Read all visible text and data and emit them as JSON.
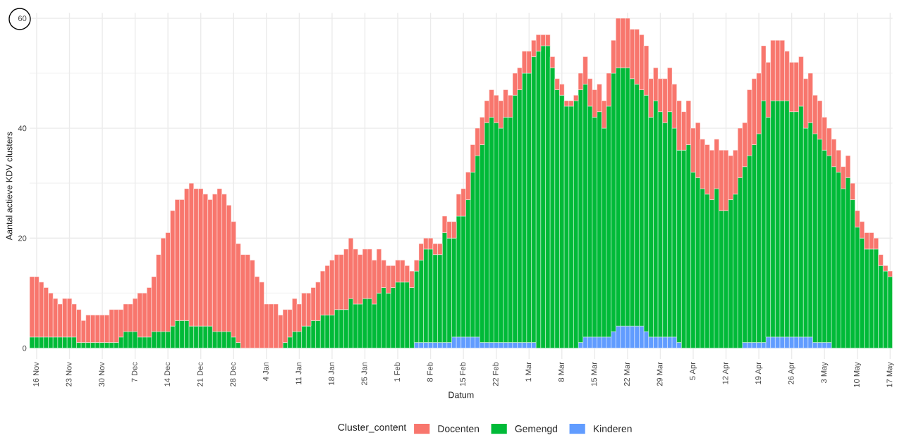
{
  "chart_data": {
    "type": "bar",
    "stacked": true,
    "xlabel": "Datum",
    "ylabel": "Aantal actieve KDV clusters",
    "legend_title": "Cluster_content",
    "categories": [
      null,
      "16 Nov",
      null,
      null,
      null,
      null,
      null,
      null,
      "23 Nov",
      null,
      null,
      null,
      null,
      null,
      null,
      "30 Nov",
      null,
      null,
      null,
      null,
      null,
      null,
      "7 Dec",
      null,
      null,
      null,
      null,
      null,
      null,
      "14 Dec",
      null,
      null,
      null,
      null,
      null,
      null,
      "21 Dec",
      null,
      null,
      null,
      null,
      null,
      null,
      "28 Dec",
      null,
      null,
      null,
      null,
      null,
      null,
      "4 Jan",
      null,
      null,
      null,
      null,
      null,
      null,
      "11 Jan",
      null,
      null,
      null,
      null,
      null,
      null,
      "18 Jan",
      null,
      null,
      null,
      null,
      null,
      null,
      "25 Jan",
      null,
      null,
      null,
      null,
      null,
      null,
      "1 Feb",
      null,
      null,
      null,
      null,
      null,
      null,
      "8 Feb",
      null,
      null,
      null,
      null,
      null,
      null,
      "15 Feb",
      null,
      null,
      null,
      null,
      null,
      null,
      "22 Feb",
      null,
      null,
      null,
      null,
      null,
      null,
      "1 Mar",
      null,
      null,
      null,
      null,
      null,
      null,
      "8 Mar",
      null,
      null,
      null,
      null,
      null,
      null,
      "15 Mar",
      null,
      null,
      null,
      null,
      null,
      null,
      "22 Mar",
      null,
      null,
      null,
      null,
      null,
      null,
      "29 Mar",
      null,
      null,
      null,
      null,
      null,
      null,
      "5 Apr",
      null,
      null,
      null,
      null,
      null,
      null,
      "12 Apr",
      null,
      null,
      null,
      null,
      null,
      null,
      "19 Apr",
      null,
      null,
      null,
      null,
      null,
      null,
      "26 Apr",
      null,
      null,
      null,
      null,
      null,
      null,
      "3 May",
      null,
      null,
      null,
      null,
      null,
      null,
      "10 May",
      null,
      null,
      null,
      null,
      null,
      null,
      "17 May"
    ],
    "series": [
      {
        "name": "Kinderen",
        "color": "#619cff",
        "values": [
          0,
          0,
          0,
          0,
          0,
          0,
          0,
          0,
          0,
          0,
          0,
          0,
          0,
          0,
          0,
          0,
          0,
          0,
          0,
          0,
          0,
          0,
          0,
          0,
          0,
          0,
          0,
          0,
          0,
          0,
          0,
          0,
          0,
          0,
          0,
          0,
          0,
          0,
          0,
          0,
          0,
          0,
          0,
          0,
          0,
          0,
          0,
          0,
          0,
          0,
          0,
          0,
          0,
          0,
          0,
          0,
          0,
          0,
          0,
          0,
          0,
          0,
          0,
          0,
          0,
          0,
          0,
          0,
          0,
          0,
          0,
          0,
          0,
          0,
          0,
          0,
          0,
          0,
          0,
          0,
          0,
          0,
          1,
          1,
          1,
          1,
          1,
          1,
          1,
          1,
          2,
          2,
          2,
          2,
          2,
          2,
          1,
          1,
          1,
          1,
          1,
          1,
          1,
          1,
          1,
          1,
          1,
          1,
          0,
          0,
          0,
          0,
          0,
          0,
          0,
          0,
          0,
          1,
          2,
          2,
          2,
          2,
          2,
          2,
          3,
          4,
          4,
          4,
          4,
          4,
          4,
          3,
          2,
          2,
          2,
          2,
          2,
          2,
          1,
          0,
          0,
          0,
          0,
          0,
          0,
          0,
          0,
          0,
          0,
          0,
          0,
          0,
          1,
          1,
          1,
          1,
          1,
          2,
          2,
          2,
          2,
          2,
          2,
          2,
          2,
          2,
          2,
          1,
          1,
          1,
          1,
          0,
          0,
          0,
          0,
          0,
          0,
          0,
          0,
          0,
          0,
          0,
          0,
          0
        ]
      },
      {
        "name": "Gemengd",
        "color": "#00ba38",
        "values": [
          2,
          2,
          2,
          2,
          2,
          2,
          2,
          2,
          2,
          2,
          1,
          1,
          1,
          1,
          1,
          1,
          1,
          1,
          1,
          2,
          3,
          3,
          3,
          2,
          2,
          2,
          3,
          3,
          3,
          3,
          4,
          5,
          5,
          5,
          4,
          4,
          4,
          4,
          4,
          3,
          3,
          3,
          3,
          2,
          1,
          0,
          0,
          0,
          0,
          0,
          0,
          0,
          0,
          0,
          1,
          2,
          3,
          3,
          4,
          4,
          5,
          5,
          6,
          6,
          6,
          7,
          7,
          7,
          9,
          8,
          8,
          9,
          9,
          8,
          10,
          11,
          10,
          11,
          12,
          12,
          12,
          11,
          13,
          15,
          17,
          17,
          16,
          16,
          20,
          19,
          18,
          22,
          22,
          25,
          30,
          33,
          36,
          40,
          41,
          40,
          39,
          41,
          41,
          45,
          46,
          49,
          49,
          52,
          54,
          55,
          55,
          51,
          47,
          46,
          44,
          44,
          45,
          46,
          46,
          42,
          40,
          41,
          38,
          42,
          47,
          47,
          47,
          47,
          45,
          44,
          43,
          43,
          40,
          43,
          41,
          39,
          41,
          38,
          35,
          36,
          37,
          32,
          31,
          29,
          28,
          27,
          29,
          25,
          25,
          27,
          28,
          31,
          32,
          34,
          36,
          38,
          44,
          40,
          43,
          43,
          43,
          43,
          41,
          41,
          42,
          38,
          39,
          38,
          37,
          35,
          34,
          33,
          32,
          29,
          31,
          27,
          22,
          20,
          18,
          18,
          18,
          15,
          14,
          13
        ]
      },
      {
        "name": "Docenten",
        "color": "#f8766d",
        "values": [
          11,
          11,
          10,
          9,
          8,
          7,
          6,
          7,
          7,
          6,
          6,
          4,
          5,
          5,
          5,
          5,
          5,
          6,
          6,
          5,
          5,
          5,
          6,
          8,
          8,
          9,
          10,
          14,
          17,
          18,
          21,
          22,
          22,
          24,
          26,
          25,
          25,
          24,
          23,
          25,
          26,
          25,
          23,
          21,
          18,
          17,
          17,
          16,
          13,
          12,
          8,
          8,
          8,
          6,
          6,
          5,
          6,
          5,
          6,
          6,
          6,
          7,
          8,
          9,
          10,
          10,
          10,
          11,
          11,
          10,
          9,
          9,
          9,
          8,
          8,
          5,
          5,
          4,
          4,
          4,
          3,
          3,
          2,
          3,
          2,
          2,
          2,
          2,
          3,
          3,
          3,
          4,
          5,
          5,
          5,
          5,
          5,
          4,
          5,
          5,
          5,
          5,
          4,
          4,
          4,
          4,
          4,
          3,
          3,
          2,
          2,
          2,
          2,
          2,
          1,
          1,
          1,
          3,
          5,
          5,
          5,
          5,
          5,
          6,
          6,
          9,
          9,
          9,
          9,
          10,
          10,
          9,
          7,
          6,
          6,
          8,
          8,
          8,
          9,
          7,
          8,
          8,
          10,
          9,
          9,
          9,
          9,
          11,
          11,
          8,
          8,
          9,
          8,
          12,
          12,
          11,
          10,
          10,
          11,
          11,
          11,
          9,
          9,
          9,
          9,
          9,
          9,
          7,
          7,
          6,
          5,
          5,
          4,
          4,
          4,
          3,
          3,
          3,
          3,
          3,
          2,
          2,
          1,
          1
        ]
      }
    ],
    "ylim": [
      -2,
      61
    ],
    "yticks": [
      0,
      20,
      40,
      60
    ],
    "grid": true,
    "legend": "bottom"
  }
}
